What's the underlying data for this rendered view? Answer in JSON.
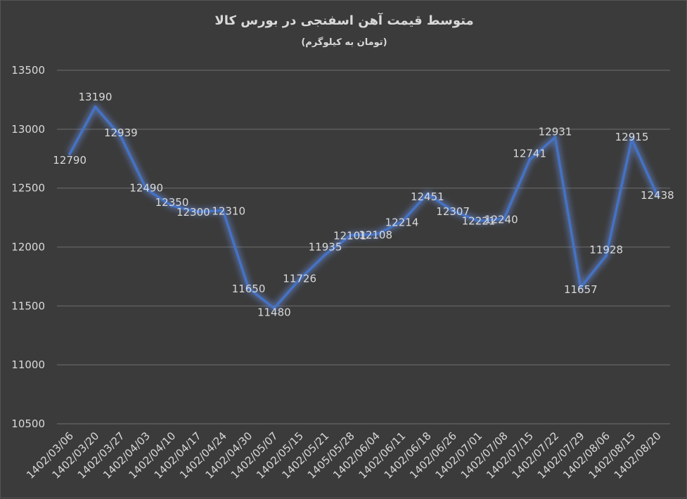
{
  "chart_data": {
    "type": "line",
    "title": "متوسط قیمت آهن اسفنجی در بورس کالا",
    "subtitle": "(تومان به کیلوگرم)",
    "categories": [
      "1402/03/06",
      "1402/03/20",
      "1402/03/27",
      "1402/04/03",
      "1402/04/10",
      "1402/04/17",
      "1402/04/24",
      "1402/04/30",
      "1402/05/07",
      "1402/05/15",
      "1402/05/21",
      "1405/05/28",
      "1402/06/04",
      "1402/06/11",
      "1402/06/18",
      "1402/06/26",
      "1402/07/01",
      "1402/07/08",
      "1402/07/15",
      "1402/07/22",
      "1402/07/29",
      "1402/08/06",
      "1402/08/15",
      "1402/08/20"
    ],
    "series": [
      {
        "values": [
          12790,
          13190,
          12939,
          12490,
          12350,
          12300,
          12310,
          11650,
          11480,
          11726,
          11935,
          12101,
          12108,
          12214,
          12451,
          12307,
          12221,
          12240,
          12741,
          12931,
          11657,
          11928,
          12915,
          12438
        ]
      }
    ],
    "yticks": [
      "13500",
      "13000",
      "12500",
      "12000",
      "11500",
      "11000",
      "10500"
    ],
    "ylim": [
      10500,
      13500
    ],
    "grid": true,
    "colors": {
      "background": "#3b3b3b",
      "line": "#4472c4",
      "grid": "#5a5a5a",
      "text": "#d9d9d9"
    }
  }
}
